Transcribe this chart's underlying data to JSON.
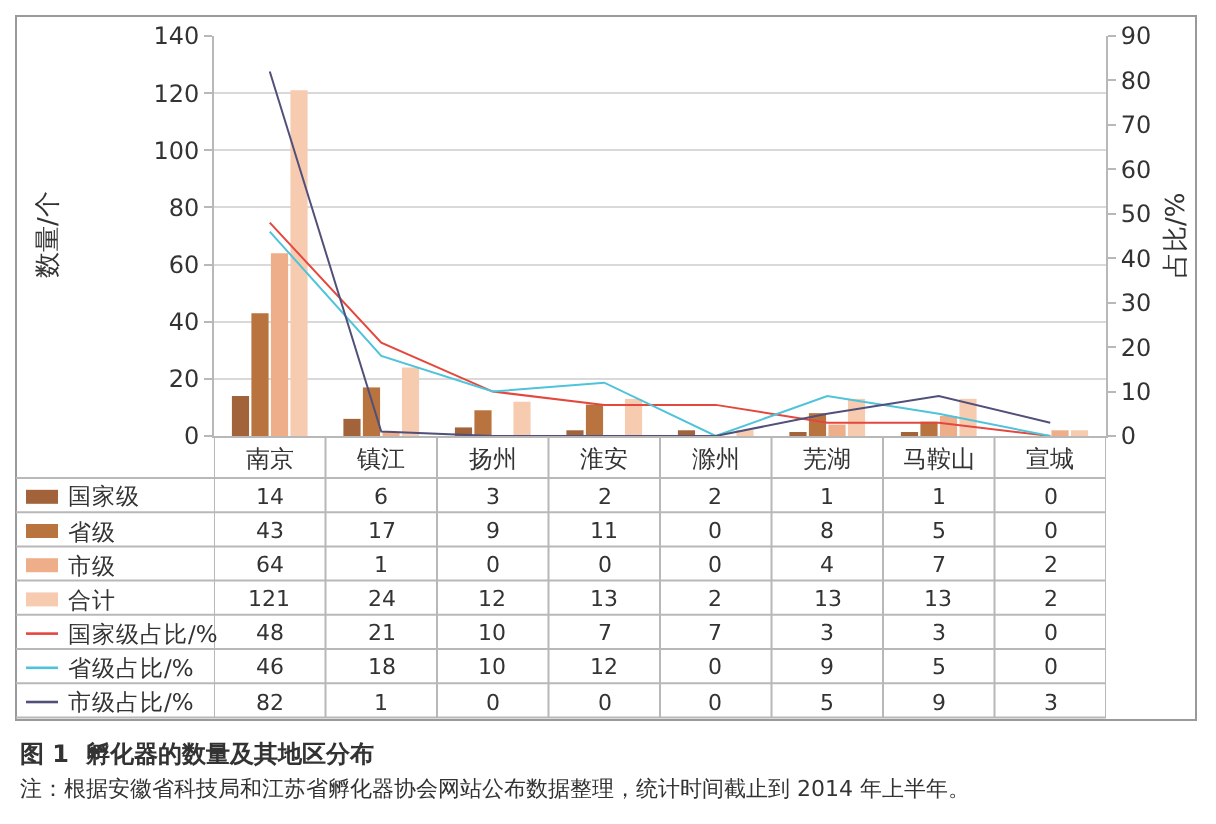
{
  "chart_data": {
    "type": "bar",
    "title": "图 1  孵化器的数量及其地区分布",
    "categories": [
      "南京",
      "镇江",
      "扬州",
      "淮安",
      "滁州",
      "芜湖",
      "马鞍山",
      "宣城"
    ],
    "series": [
      {
        "name": "国家级",
        "color": "#a2633a",
        "values": [
          14,
          6,
          3,
          2,
          2,
          1,
          1,
          0
        ]
      },
      {
        "name": "省级",
        "color": "#b8733f",
        "values": [
          43,
          17,
          9,
          11,
          0,
          8,
          5,
          0
        ]
      },
      {
        "name": "市级",
        "color": "#eeae8a",
        "values": [
          64,
          1,
          0,
          0,
          0,
          4,
          7,
          2
        ]
      },
      {
        "name": "合计",
        "color": "#f6cbb0",
        "values": [
          121,
          24,
          12,
          13,
          2,
          13,
          13,
          2
        ]
      },
      {
        "name": "国家级占比/%",
        "type": "line",
        "axis": "y2",
        "color": "#e4473d",
        "values": [
          48,
          21,
          10,
          7,
          7,
          3,
          3,
          0
        ]
      },
      {
        "name": "省级占比/%",
        "type": "line",
        "axis": "y2",
        "color": "#4ec3da",
        "values": [
          46,
          18,
          10,
          12,
          0,
          9,
          5,
          0
        ]
      },
      {
        "name": "市级占比/%",
        "type": "line",
        "axis": "y2",
        "color": "#50507a",
        "values": [
          82,
          1,
          0,
          0,
          0,
          5,
          9,
          3
        ]
      }
    ],
    "ylabel": "数量/个",
    "y2label": "占比/%",
    "ylim": [
      0,
      140
    ],
    "yticks": [
      0,
      20,
      40,
      60,
      80,
      100,
      120,
      140
    ],
    "y2lim": [
      0,
      90
    ],
    "y2ticks": [
      0,
      10,
      20,
      30,
      40,
      50,
      60,
      70,
      80,
      90
    ],
    "grid": "y",
    "legend": "bottom left",
    "data_labels": true,
    "annotations": [
      "注：根据安徽省科技局和江苏省孵化器协会网站公布数据整理，统计时间截止到 2014 年上半年。"
    ]
  }
}
